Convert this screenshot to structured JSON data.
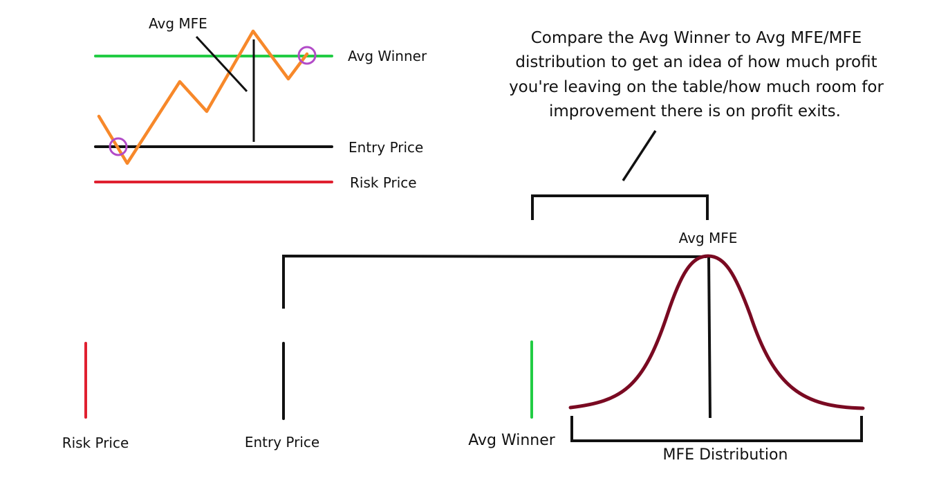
{
  "colors": {
    "avg_winner": "#22cc44",
    "entry": "#111111",
    "risk": "#e02030",
    "price_path": "#f7882a",
    "markers": "#b24bc8",
    "distribution": "#7a0a22",
    "annotation": "#111111"
  },
  "top_diagram": {
    "avg_mfe_label": "Avg MFE",
    "avg_winner_label": "Avg Winner",
    "entry_price_label": "Entry Price",
    "risk_price_label": "Risk Price"
  },
  "callout": {
    "lines": [
      "Compare the Avg Winner to Avg MFE/MFE",
      "distribution to get an idea of how much profit",
      "you're leaving on the table/how much room for",
      "improvement there is on profit exits."
    ]
  },
  "bottom_diagram": {
    "avg_mfe_label": "Avg MFE",
    "risk_price_label": "Risk Price",
    "entry_price_label": "Entry Price",
    "avg_winner_label": "Avg Winner",
    "distribution_label": "MFE Distribution"
  }
}
